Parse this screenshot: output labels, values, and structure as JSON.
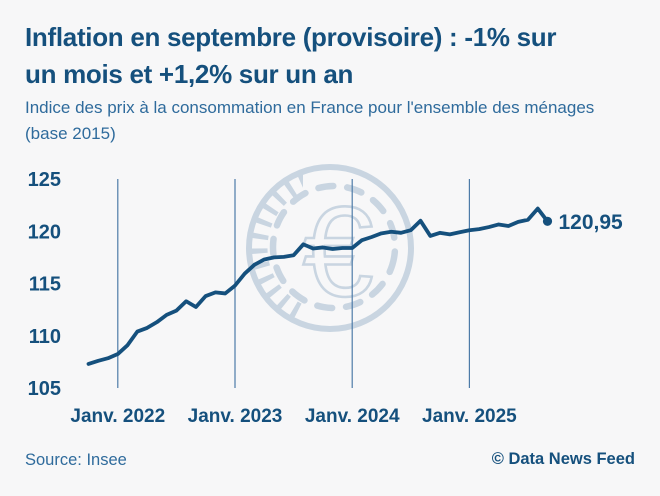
{
  "header": {
    "title_lines": [
      "Inflation en septembre (provisoire) : -1% sur",
      "un mois et +1,2% sur un an"
    ],
    "subtitle_lines": [
      "Indice des prix à la consommation en France pour l'ensemble des ménages",
      "(base 2015)"
    ]
  },
  "chart_data": {
    "type": "line",
    "grid": "vertical",
    "legend": "none",
    "ylim": [
      105,
      125
    ],
    "y_ticks": [
      125,
      120,
      115,
      110,
      105
    ],
    "x_tick_labels": [
      "Janv. 2022",
      "Janv. 2023",
      "Janv. 2024",
      "Janv. 2025"
    ],
    "x_tick_month_indices": [
      3,
      15,
      27,
      39
    ],
    "end_label": "120,95",
    "end_value": 120.95,
    "watermark_glyph": "€",
    "series": [
      {
        "name": "Indice des prix à la consommation (base 2015)",
        "months": [
          "2021-10",
          "2021-11",
          "2021-12",
          "2022-01",
          "2022-02",
          "2022-03",
          "2022-04",
          "2022-05",
          "2022-06",
          "2022-07",
          "2022-08",
          "2022-09",
          "2022-10",
          "2022-11",
          "2022-12",
          "2023-01",
          "2023-02",
          "2023-03",
          "2023-04",
          "2023-05",
          "2023-06",
          "2023-07",
          "2023-08",
          "2023-09",
          "2023-10",
          "2023-11",
          "2023-12",
          "2024-01",
          "2024-02",
          "2024-03",
          "2024-04",
          "2024-05",
          "2024-06",
          "2024-07",
          "2024-08",
          "2024-09",
          "2024-10",
          "2024-11",
          "2024-12",
          "2025-01",
          "2025-02",
          "2025-03",
          "2025-04",
          "2025-05",
          "2025-06",
          "2025-07",
          "2025-08",
          "2025-09"
        ],
        "values": [
          107.3,
          107.6,
          107.85,
          108.25,
          109.1,
          110.4,
          110.75,
          111.3,
          112.0,
          112.4,
          113.3,
          112.75,
          113.8,
          114.15,
          114.05,
          114.8,
          115.95,
          116.8,
          117.3,
          117.5,
          117.55,
          117.7,
          118.75,
          118.35,
          118.45,
          118.3,
          118.4,
          118.4,
          119.15,
          119.45,
          119.8,
          119.95,
          119.85,
          120.1,
          121.0,
          119.55,
          119.85,
          119.7,
          119.9,
          120.1,
          120.2,
          120.4,
          120.65,
          120.5,
          120.9,
          121.1,
          122.17,
          120.95
        ]
      }
    ]
  },
  "footer": {
    "source": "Source: Insee",
    "credit": "© Data News Feed"
  },
  "colors": {
    "background": "#f7f7f8",
    "dark_blue": "#15507d",
    "medium_blue": "#2f6b9c",
    "gridline": "#4d7ba8",
    "watermark": "#c9d5e1"
  }
}
